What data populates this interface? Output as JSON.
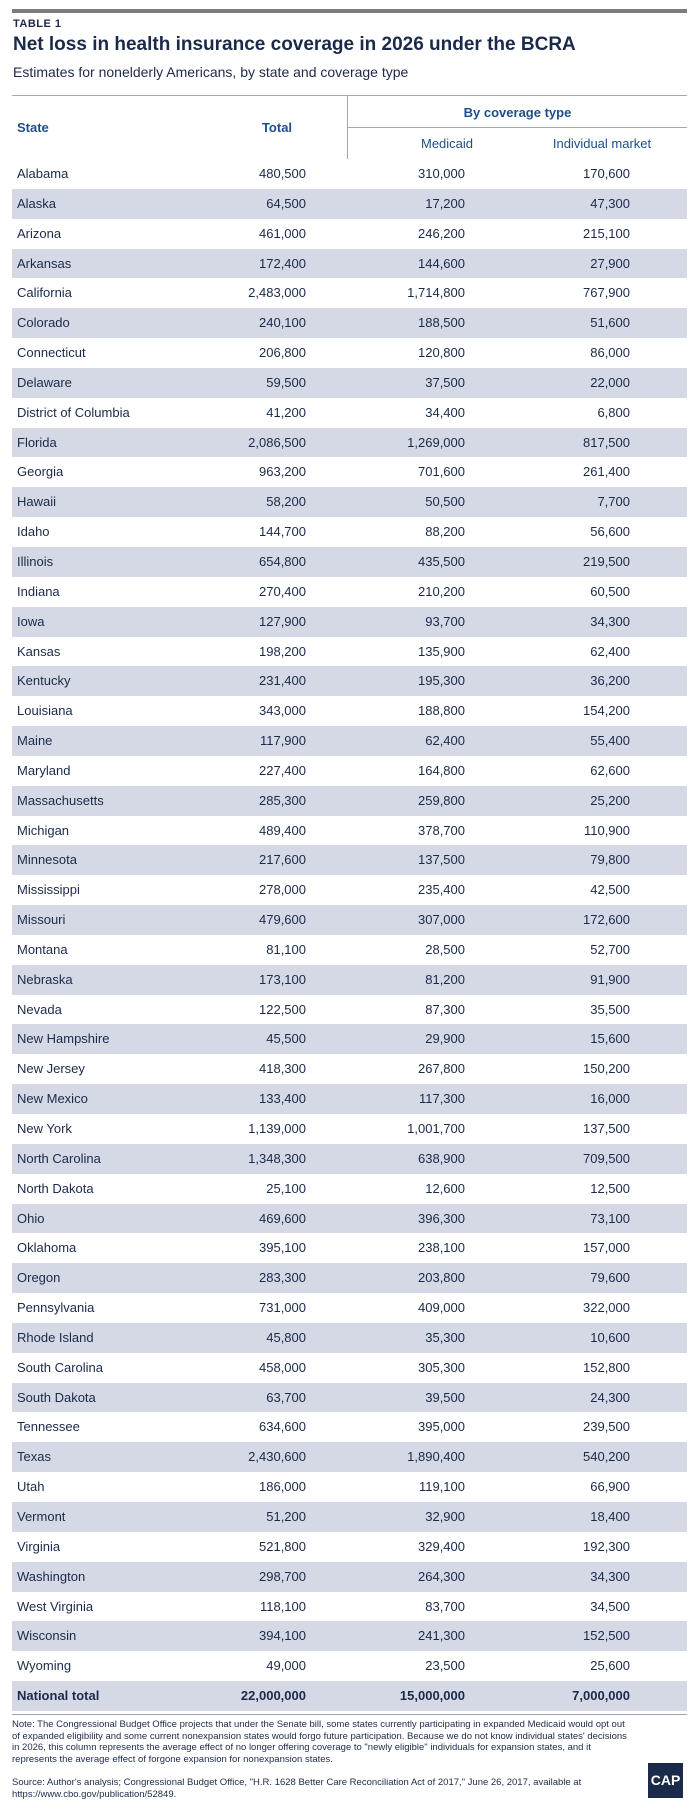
{
  "header": {
    "kicker": "TABLE 1",
    "title": "Net loss in health insurance coverage in 2026 under the BCRA",
    "subtitle": "Estimates for nonelderly Americans, by state and coverage type"
  },
  "columns": {
    "state": "State",
    "total": "Total",
    "group": "By coverage type",
    "medicaid": "Medicaid",
    "individual": "Individual market"
  },
  "rows": [
    [
      "Alabama",
      "480,500",
      "310,000",
      "170,600"
    ],
    [
      "Alaska",
      "64,500",
      "17,200",
      "47,300"
    ],
    [
      "Arizona",
      "461,000",
      "246,200",
      "215,100"
    ],
    [
      "Arkansas",
      "172,400",
      "144,600",
      "27,900"
    ],
    [
      "California",
      "2,483,000",
      "1,714,800",
      "767,900"
    ],
    [
      "Colorado",
      "240,100",
      "188,500",
      "51,600"
    ],
    [
      "Connecticut",
      "206,800",
      "120,800",
      "86,000"
    ],
    [
      "Delaware",
      "59,500",
      "37,500",
      "22,000"
    ],
    [
      "District of Columbia",
      "41,200",
      "34,400",
      "6,800"
    ],
    [
      "Florida",
      "2,086,500",
      "1,269,000",
      "817,500"
    ],
    [
      "Georgia",
      "963,200",
      "701,600",
      "261,400"
    ],
    [
      "Hawaii",
      "58,200",
      "50,500",
      "7,700"
    ],
    [
      "Idaho",
      "144,700",
      "88,200",
      "56,600"
    ],
    [
      "Illinois",
      "654,800",
      "435,500",
      "219,500"
    ],
    [
      "Indiana",
      "270,400",
      "210,200",
      "60,500"
    ],
    [
      "Iowa",
      "127,900",
      "93,700",
      "34,300"
    ],
    [
      "Kansas",
      "198,200",
      "135,900",
      "62,400"
    ],
    [
      "Kentucky",
      "231,400",
      "195,300",
      "36,200"
    ],
    [
      "Louisiana",
      "343,000",
      "188,800",
      "154,200"
    ],
    [
      "Maine",
      "117,900",
      "62,400",
      "55,400"
    ],
    [
      "Maryland",
      "227,400",
      "164,800",
      "62,600"
    ],
    [
      "Massachusetts",
      "285,300",
      "259,800",
      "25,200"
    ],
    [
      "Michigan",
      "489,400",
      "378,700",
      "110,900"
    ],
    [
      "Minnesota",
      "217,600",
      "137,500",
      "79,800"
    ],
    [
      "Mississippi",
      "278,000",
      "235,400",
      "42,500"
    ],
    [
      "Missouri",
      "479,600",
      "307,000",
      "172,600"
    ],
    [
      "Montana",
      "81,100",
      "28,500",
      "52,700"
    ],
    [
      "Nebraska",
      "173,100",
      "81,200",
      "91,900"
    ],
    [
      "Nevada",
      "122,500",
      "87,300",
      "35,500"
    ],
    [
      "New Hampshire",
      "45,500",
      "29,900",
      "15,600"
    ],
    [
      "New Jersey",
      "418,300",
      "267,800",
      "150,200"
    ],
    [
      "New Mexico",
      "133,400",
      "117,300",
      "16,000"
    ],
    [
      "New York",
      "1,139,000",
      "1,001,700",
      "137,500"
    ],
    [
      "North Carolina",
      "1,348,300",
      "638,900",
      "709,500"
    ],
    [
      "North Dakota",
      "25,100",
      "12,600",
      "12,500"
    ],
    [
      "Ohio",
      "469,600",
      "396,300",
      "73,100"
    ],
    [
      "Oklahoma",
      "395,100",
      "238,100",
      "157,000"
    ],
    [
      "Oregon",
      "283,300",
      "203,800",
      "79,600"
    ],
    [
      "Pennsylvania",
      "731,000",
      "409,000",
      "322,000"
    ],
    [
      "Rhode Island",
      "45,800",
      "35,300",
      "10,600"
    ],
    [
      "South Carolina",
      "458,000",
      "305,300",
      "152,800"
    ],
    [
      "South Dakota",
      "63,700",
      "39,500",
      "24,300"
    ],
    [
      "Tennessee",
      "634,600",
      "395,000",
      "239,500"
    ],
    [
      "Texas",
      "2,430,600",
      "1,890,400",
      "540,200"
    ],
    [
      "Utah",
      "186,000",
      "119,100",
      "66,900"
    ],
    [
      "Vermont",
      "51,200",
      "32,900",
      "18,400"
    ],
    [
      "Virginia",
      "521,800",
      "329,400",
      "192,300"
    ],
    [
      "Washington",
      "298,700",
      "264,300",
      "34,300"
    ],
    [
      "West Virginia",
      "118,100",
      "83,700",
      "34,500"
    ],
    [
      "Wisconsin",
      "394,100",
      "241,300",
      "152,500"
    ],
    [
      "Wyoming",
      "49,000",
      "23,500",
      "25,600"
    ]
  ],
  "total_row": [
    "National total",
    "22,000,000",
    "15,000,000",
    "7,000,000"
  ],
  "footer": {
    "note": "Note: The Congressional Budget Office projects that under the Senate bill, some states currently participating in expanded Medicaid would opt out of expanded eligibility and some current nonexpansion states would forgo future participation. Because we do not know individual states' decisions in 2026, this column represents the average effect of no longer offering coverage to \"newly eligible\" individuals for expansion states, and it represents the average effect of forgone expansion for nonexpansion states.",
    "source": "Source: Author's analysis; Congressional Budget Office, \"H.R. 1628 Better Care Reconciliation Act of 2017,\" June 26, 2017, available at https://www.cbo.gov/publication/52849.",
    "logo": "CAP"
  }
}
